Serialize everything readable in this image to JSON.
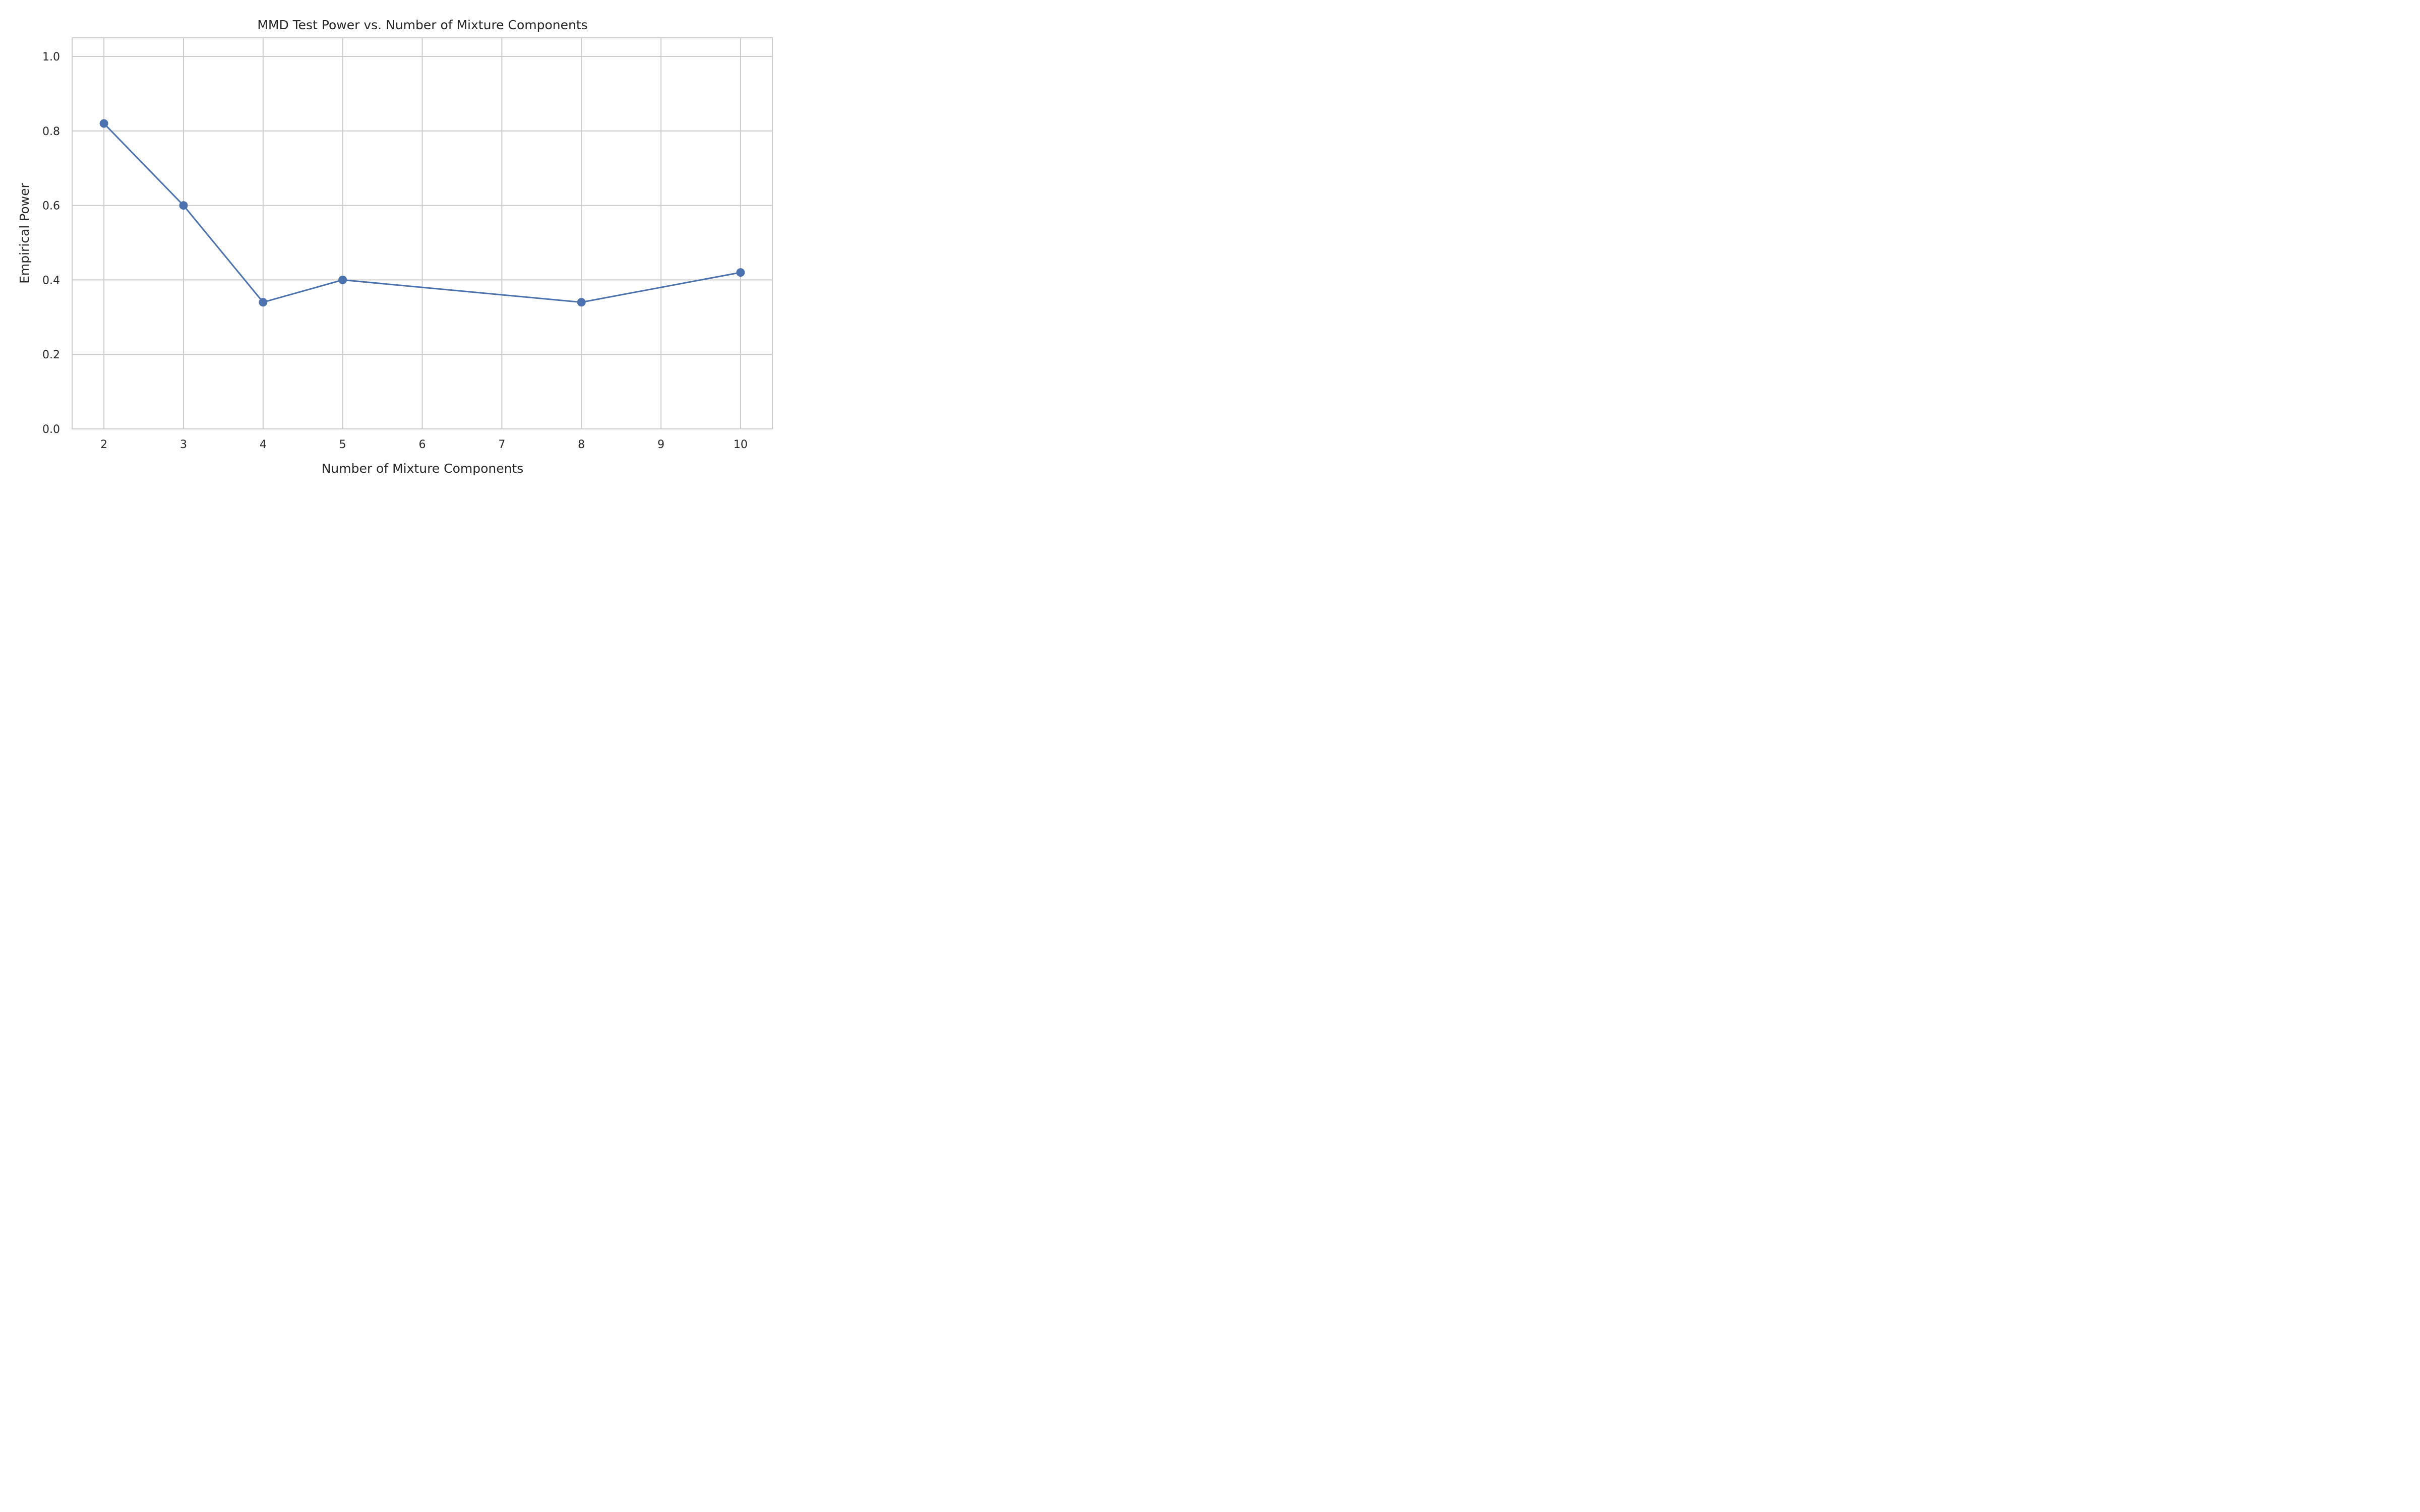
{
  "chart_data": {
    "type": "line",
    "title": "MMD Test Power vs. Number of Mixture Components",
    "xlabel": "Number of Mixture Components",
    "ylabel": "Empirical Power",
    "x": [
      2,
      3,
      4,
      5,
      8,
      10
    ],
    "series": [
      {
        "values": [
          0.82,
          0.6,
          0.34,
          0.4,
          0.34,
          0.42
        ],
        "color": "#4c72b0"
      }
    ],
    "xlim": [
      1.6,
      10.4
    ],
    "ylim": [
      0,
      1.05
    ],
    "xticks": [
      2,
      3,
      4,
      5,
      6,
      7,
      8,
      9,
      10
    ],
    "yticks": [
      0.0,
      0.2,
      0.4,
      0.6,
      0.8,
      1.0
    ],
    "grid": true,
    "legend": "none"
  }
}
